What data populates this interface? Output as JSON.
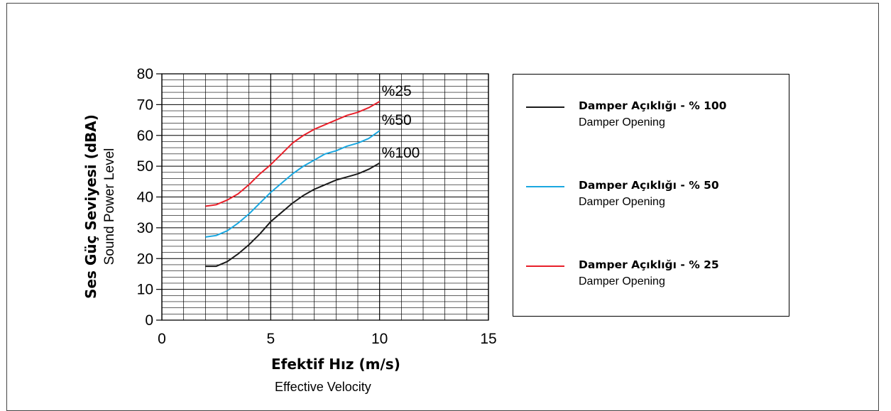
{
  "chart_data": {
    "type": "line",
    "title": "",
    "ylabel": "Ses Güç Seviyesi (dBA)",
    "ylabel_sub": "Sound Power Level",
    "xlabel": "Efektif Hız (m/s)",
    "xlabel_sub": "Effective Velocity",
    "xlim": [
      0,
      15
    ],
    "ylim": [
      0,
      80
    ],
    "x_ticks": [
      0,
      5,
      10,
      15
    ],
    "y_ticks": [
      0,
      10,
      20,
      30,
      40,
      50,
      60,
      70,
      80
    ],
    "grid": true,
    "legend_position": "right",
    "series": [
      {
        "name": "%25",
        "legend_title": "Damper Açıklığı - % 25",
        "legend_sub": "Damper Opening",
        "color": "#e8202a",
        "x": [
          2,
          2.5,
          3,
          3.5,
          4,
          4.5,
          5,
          5.5,
          6,
          6.5,
          7,
          7.5,
          8,
          8.5,
          9,
          9.5,
          10
        ],
        "y": [
          37,
          37.5,
          39,
          41,
          44,
          47.5,
          50.5,
          54,
          57.5,
          60,
          62,
          63.5,
          65,
          66.5,
          67.5,
          69,
          71
        ]
      },
      {
        "name": "%50",
        "legend_title": "Damper Açıklığı - % 50",
        "legend_sub": "Damper Opening",
        "color": "#1aa7e0",
        "x": [
          2,
          2.5,
          3,
          3.5,
          4,
          4.5,
          5,
          5.5,
          6,
          6.5,
          7,
          7.5,
          8,
          8.5,
          9,
          9.5,
          10
        ],
        "y": [
          27,
          27.5,
          29,
          31.5,
          34.5,
          38,
          41.5,
          44.5,
          47.5,
          50,
          52,
          54,
          55,
          56.5,
          57.5,
          59,
          61.5
        ]
      },
      {
        "name": "%100",
        "legend_title": "Damper Açıklığı - % 100",
        "legend_sub": "Damper Opening",
        "color": "#1a1a1a",
        "x": [
          2,
          2.5,
          3,
          3.5,
          4,
          4.5,
          5,
          5.5,
          6,
          6.5,
          7,
          7.5,
          8,
          8.5,
          9,
          9.5,
          10
        ],
        "y": [
          17.5,
          17.5,
          19,
          21.5,
          24.5,
          28,
          32,
          35,
          38,
          40.5,
          42.5,
          44,
          45.5,
          46.5,
          47.5,
          49,
          51
        ]
      }
    ]
  }
}
